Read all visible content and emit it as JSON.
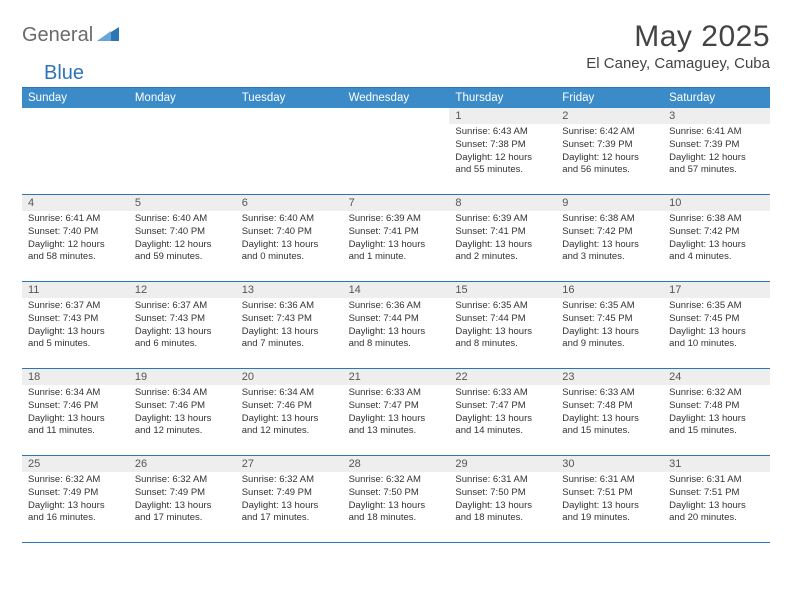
{
  "brand": {
    "part1": "General",
    "part2": "Blue"
  },
  "title": "May 2025",
  "location": "El Caney, Camaguey, Cuba",
  "header_bg": "#3b8bc9",
  "accent": "#2e75b6",
  "daynum_bg": "#eeeeee",
  "day_names": [
    "Sunday",
    "Monday",
    "Tuesday",
    "Wednesday",
    "Thursday",
    "Friday",
    "Saturday"
  ],
  "weeks": [
    [
      null,
      null,
      null,
      null,
      {
        "n": "1",
        "sr": "6:43 AM",
        "ss": "7:38 PM",
        "dl": "12 hours and 55 minutes."
      },
      {
        "n": "2",
        "sr": "6:42 AM",
        "ss": "7:39 PM",
        "dl": "12 hours and 56 minutes."
      },
      {
        "n": "3",
        "sr": "6:41 AM",
        "ss": "7:39 PM",
        "dl": "12 hours and 57 minutes."
      }
    ],
    [
      {
        "n": "4",
        "sr": "6:41 AM",
        "ss": "7:40 PM",
        "dl": "12 hours and 58 minutes."
      },
      {
        "n": "5",
        "sr": "6:40 AM",
        "ss": "7:40 PM",
        "dl": "12 hours and 59 minutes."
      },
      {
        "n": "6",
        "sr": "6:40 AM",
        "ss": "7:40 PM",
        "dl": "13 hours and 0 minutes."
      },
      {
        "n": "7",
        "sr": "6:39 AM",
        "ss": "7:41 PM",
        "dl": "13 hours and 1 minute."
      },
      {
        "n": "8",
        "sr": "6:39 AM",
        "ss": "7:41 PM",
        "dl": "13 hours and 2 minutes."
      },
      {
        "n": "9",
        "sr": "6:38 AM",
        "ss": "7:42 PM",
        "dl": "13 hours and 3 minutes."
      },
      {
        "n": "10",
        "sr": "6:38 AM",
        "ss": "7:42 PM",
        "dl": "13 hours and 4 minutes."
      }
    ],
    [
      {
        "n": "11",
        "sr": "6:37 AM",
        "ss": "7:43 PM",
        "dl": "13 hours and 5 minutes."
      },
      {
        "n": "12",
        "sr": "6:37 AM",
        "ss": "7:43 PM",
        "dl": "13 hours and 6 minutes."
      },
      {
        "n": "13",
        "sr": "6:36 AM",
        "ss": "7:43 PM",
        "dl": "13 hours and 7 minutes."
      },
      {
        "n": "14",
        "sr": "6:36 AM",
        "ss": "7:44 PM",
        "dl": "13 hours and 8 minutes."
      },
      {
        "n": "15",
        "sr": "6:35 AM",
        "ss": "7:44 PM",
        "dl": "13 hours and 8 minutes."
      },
      {
        "n": "16",
        "sr": "6:35 AM",
        "ss": "7:45 PM",
        "dl": "13 hours and 9 minutes."
      },
      {
        "n": "17",
        "sr": "6:35 AM",
        "ss": "7:45 PM",
        "dl": "13 hours and 10 minutes."
      }
    ],
    [
      {
        "n": "18",
        "sr": "6:34 AM",
        "ss": "7:46 PM",
        "dl": "13 hours and 11 minutes."
      },
      {
        "n": "19",
        "sr": "6:34 AM",
        "ss": "7:46 PM",
        "dl": "13 hours and 12 minutes."
      },
      {
        "n": "20",
        "sr": "6:34 AM",
        "ss": "7:46 PM",
        "dl": "13 hours and 12 minutes."
      },
      {
        "n": "21",
        "sr": "6:33 AM",
        "ss": "7:47 PM",
        "dl": "13 hours and 13 minutes."
      },
      {
        "n": "22",
        "sr": "6:33 AM",
        "ss": "7:47 PM",
        "dl": "13 hours and 14 minutes."
      },
      {
        "n": "23",
        "sr": "6:33 AM",
        "ss": "7:48 PM",
        "dl": "13 hours and 15 minutes."
      },
      {
        "n": "24",
        "sr": "6:32 AM",
        "ss": "7:48 PM",
        "dl": "13 hours and 15 minutes."
      }
    ],
    [
      {
        "n": "25",
        "sr": "6:32 AM",
        "ss": "7:49 PM",
        "dl": "13 hours and 16 minutes."
      },
      {
        "n": "26",
        "sr": "6:32 AM",
        "ss": "7:49 PM",
        "dl": "13 hours and 17 minutes."
      },
      {
        "n": "27",
        "sr": "6:32 AM",
        "ss": "7:49 PM",
        "dl": "13 hours and 17 minutes."
      },
      {
        "n": "28",
        "sr": "6:32 AM",
        "ss": "7:50 PM",
        "dl": "13 hours and 18 minutes."
      },
      {
        "n": "29",
        "sr": "6:31 AM",
        "ss": "7:50 PM",
        "dl": "13 hours and 18 minutes."
      },
      {
        "n": "30",
        "sr": "6:31 AM",
        "ss": "7:51 PM",
        "dl": "13 hours and 19 minutes."
      },
      {
        "n": "31",
        "sr": "6:31 AM",
        "ss": "7:51 PM",
        "dl": "13 hours and 20 minutes."
      }
    ]
  ],
  "labels": {
    "sunrise": "Sunrise:",
    "sunset": "Sunset:",
    "daylight": "Daylight:"
  }
}
